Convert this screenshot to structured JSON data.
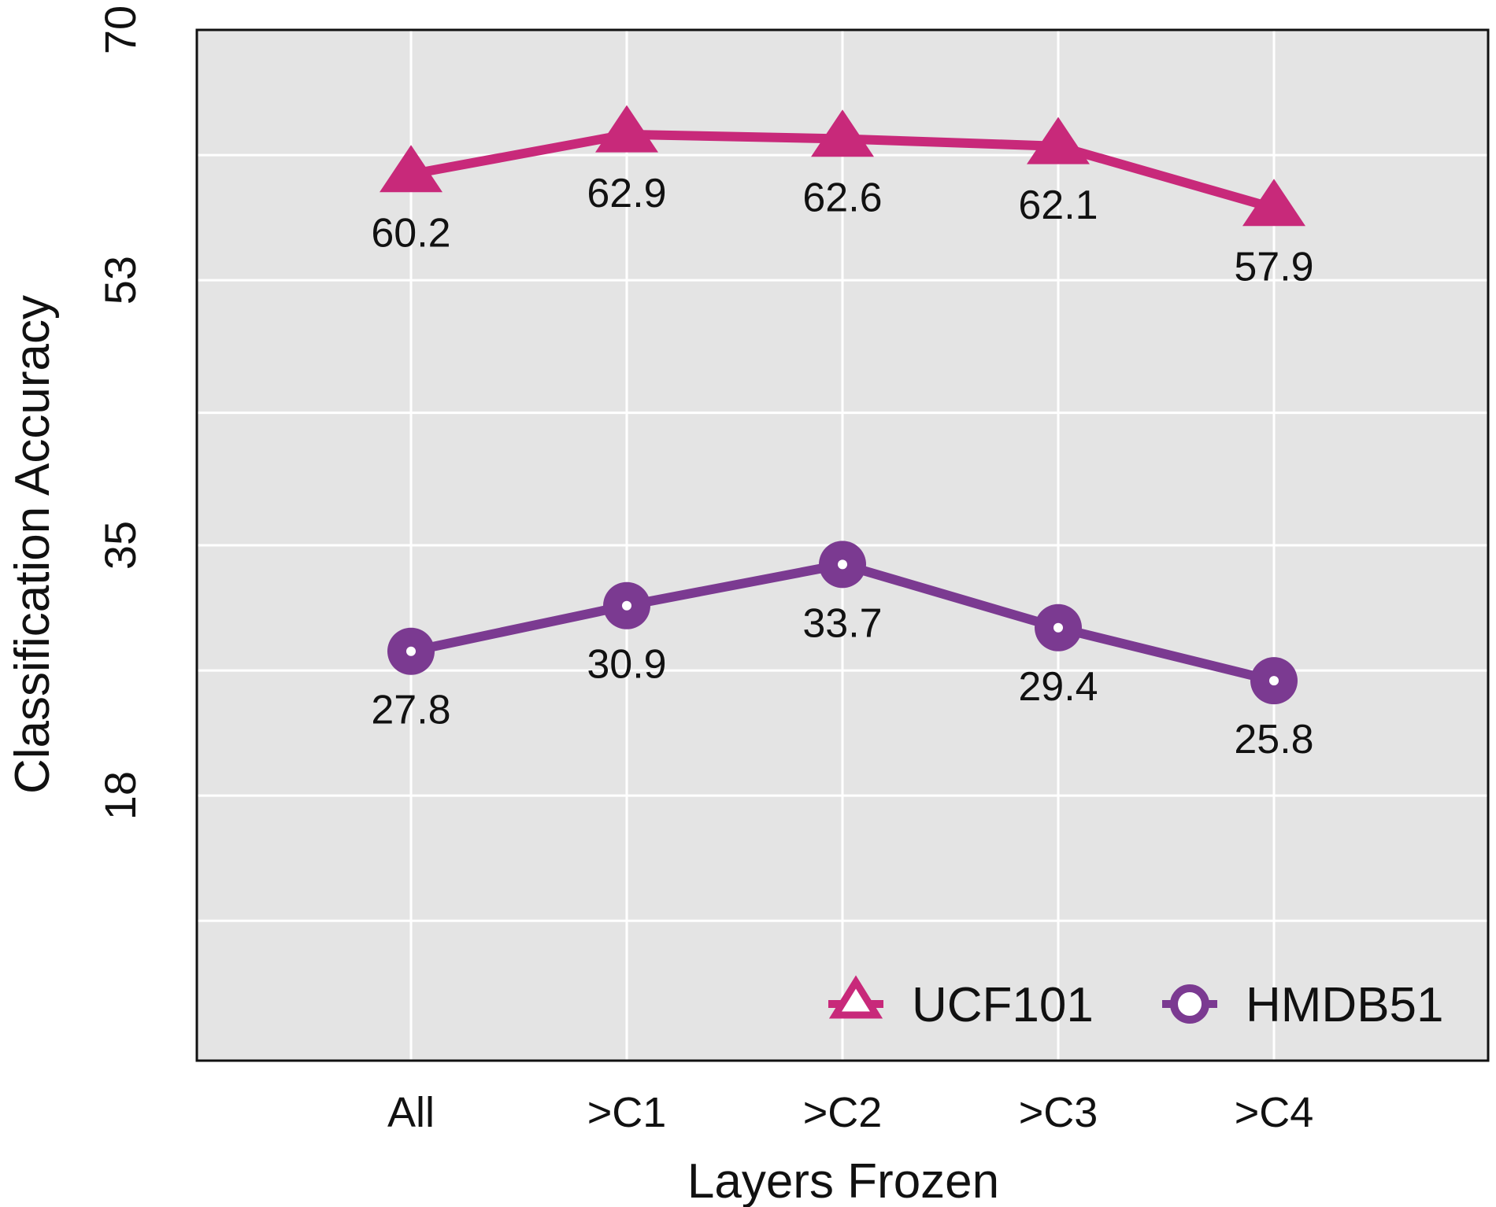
{
  "chart_data": {
    "type": "line",
    "xlabel": "Layers Frozen",
    "ylabel": "Classification Accuracy",
    "categories": [
      "All",
      ">C1",
      ">C2",
      ">C3",
      ">C4"
    ],
    "ylim": [
      0,
      70
    ],
    "yticks": [
      "18",
      "35",
      "53",
      "70"
    ],
    "ytick_values": [
      18,
      35,
      53,
      70
    ],
    "grid": true,
    "legend_position": "bottom-right",
    "series": [
      {
        "name": "UCF101",
        "values": [
          60.2,
          62.9,
          62.6,
          62.1,
          57.9
        ],
        "labels": [
          "60.2",
          "62.9",
          "62.6",
          "62.1",
          "57.9"
        ],
        "marker": "triangle",
        "color": "#c8297a"
      },
      {
        "name": "HMDB51",
        "values": [
          27.8,
          30.9,
          33.7,
          29.4,
          25.8
        ],
        "labels": [
          "27.8",
          "30.9",
          "33.7",
          "29.4",
          "25.8"
        ],
        "marker": "circle",
        "color": "#7b3a91"
      }
    ],
    "colors": {
      "panel": "#e4e4e4",
      "grid": "#ffffff",
      "frame": "#111111"
    }
  }
}
